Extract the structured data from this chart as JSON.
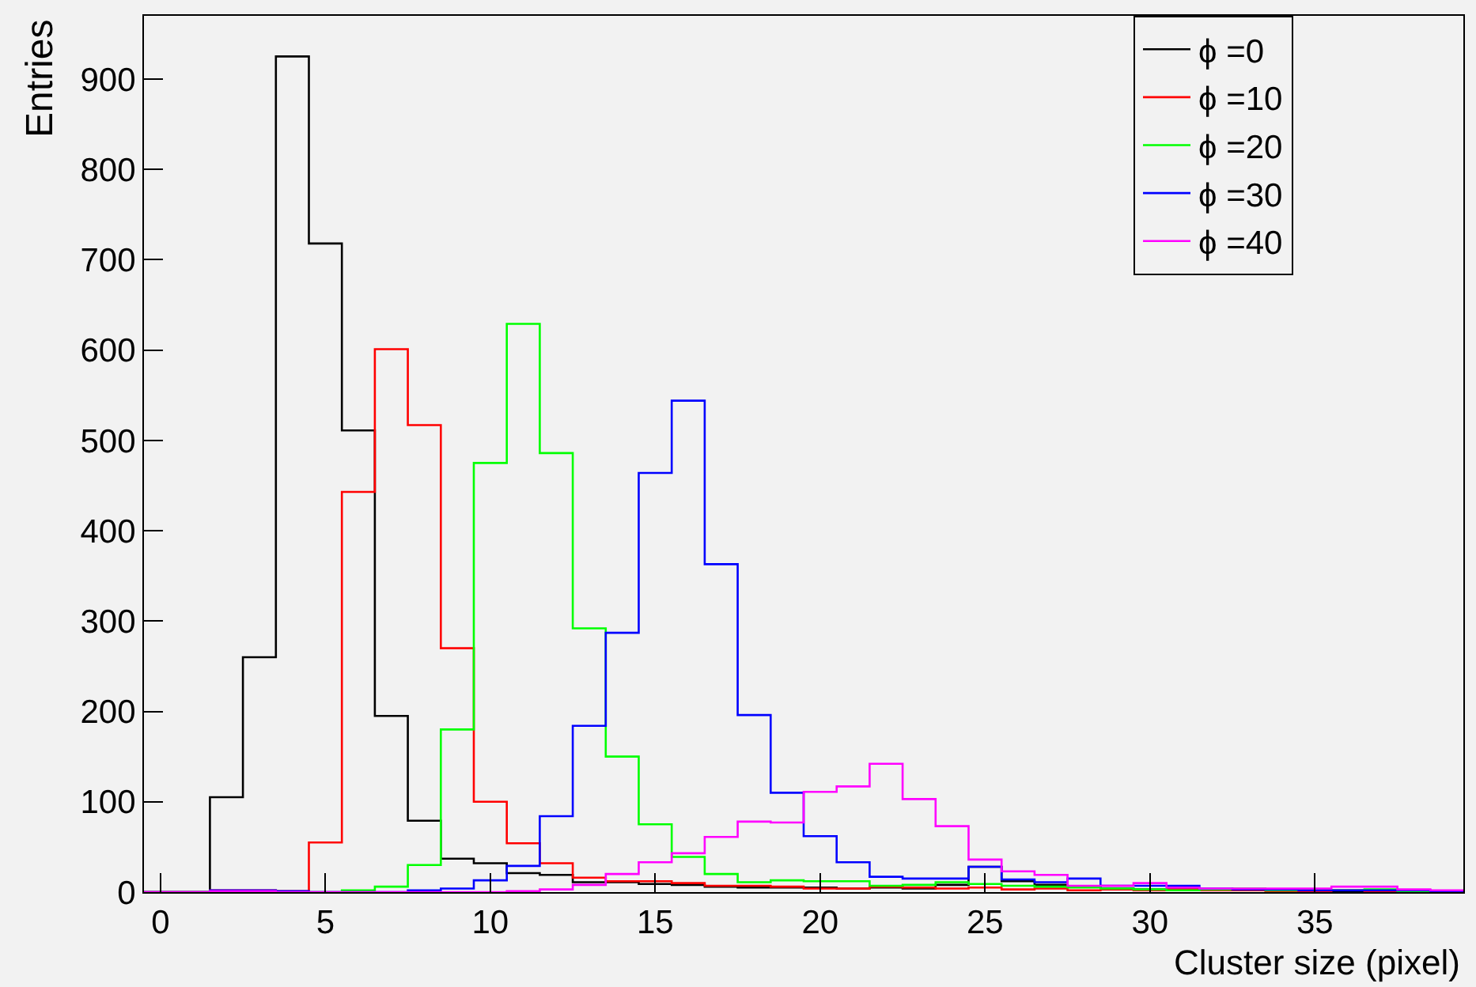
{
  "chart_data": {
    "type": "histogram",
    "xlabel": "Cluster size (pixel)",
    "ylabel": "Entries",
    "bins": [
      -0.5,
      0.5,
      1.5,
      2.5,
      3.5,
      4.5,
      5.5,
      6.5,
      7.5,
      8.5,
      9.5,
      10.5,
      11.5,
      12.5,
      13.5,
      14.5,
      15.5,
      16.5,
      17.5,
      18.5,
      19.5,
      20.5,
      21.5,
      22.5,
      23.5,
      24.5,
      25.5,
      26.5,
      27.5,
      28.5,
      29.5,
      30.5,
      31.5,
      32.5,
      33.5,
      34.5,
      35.5,
      36.5,
      37.5,
      38.5,
      39.5
    ],
    "series": [
      {
        "name": "ϕ =0",
        "color": "#000000",
        "values": [
          0,
          0,
          105,
          260,
          925,
          718,
          511,
          195,
          79,
          37,
          32,
          21,
          19,
          11,
          11,
          9,
          8,
          6,
          5,
          5,
          5,
          4,
          5,
          4,
          8,
          28,
          12,
          8,
          6,
          4,
          3,
          3,
          2,
          2,
          2,
          2,
          1,
          1,
          1,
          0
        ]
      },
      {
        "name": "ϕ =10",
        "color": "#ff0000",
        "values": [
          0,
          0,
          2,
          2,
          1,
          55,
          443,
          601,
          517,
          270,
          100,
          54,
          32,
          16,
          12,
          12,
          10,
          7,
          7,
          6,
          4,
          4,
          6,
          5,
          4,
          5,
          3,
          4,
          2,
          3,
          2,
          3,
          2,
          2,
          1,
          1,
          2,
          1,
          1,
          1
        ]
      },
      {
        "name": "ϕ =20",
        "color": "#00ff00",
        "values": [
          0,
          0,
          1,
          1,
          0,
          0,
          2,
          6,
          30,
          180,
          475,
          629,
          486,
          292,
          150,
          75,
          39,
          20,
          11,
          13,
          12,
          12,
          7,
          8,
          11,
          9,
          7,
          6,
          5,
          4,
          3,
          2,
          3,
          4,
          2,
          2,
          2,
          3,
          1,
          1
        ]
      },
      {
        "name": "ϕ =30",
        "color": "#0000ff",
        "values": [
          0,
          0,
          2,
          2,
          1,
          0,
          0,
          0,
          2,
          4,
          13,
          29,
          84,
          184,
          287,
          464,
          544,
          363,
          196,
          110,
          62,
          33,
          17,
          15,
          15,
          28,
          14,
          11,
          15,
          7,
          7,
          7,
          4,
          3,
          3,
          2,
          2,
          2,
          2,
          1
        ]
      },
      {
        "name": "ϕ =40",
        "color": "#ff00ff",
        "values": [
          0,
          0,
          1,
          1,
          0,
          0,
          0,
          0,
          0,
          0,
          0,
          1,
          3,
          8,
          20,
          33,
          43,
          61,
          78,
          77,
          111,
          117,
          142,
          103,
          73,
          36,
          23,
          19,
          7,
          7,
          10,
          5,
          4,
          4,
          4,
          4,
          6,
          6,
          3,
          2
        ]
      }
    ],
    "xlim": [
      -0.5,
      39.5
    ],
    "ylim": [
      0,
      970
    ],
    "xticks": [
      0,
      5,
      10,
      15,
      20,
      25,
      30,
      35
    ],
    "yticks": [
      0,
      100,
      200,
      300,
      400,
      500,
      600,
      700,
      800,
      900
    ],
    "grid": false,
    "legend": "top right"
  }
}
